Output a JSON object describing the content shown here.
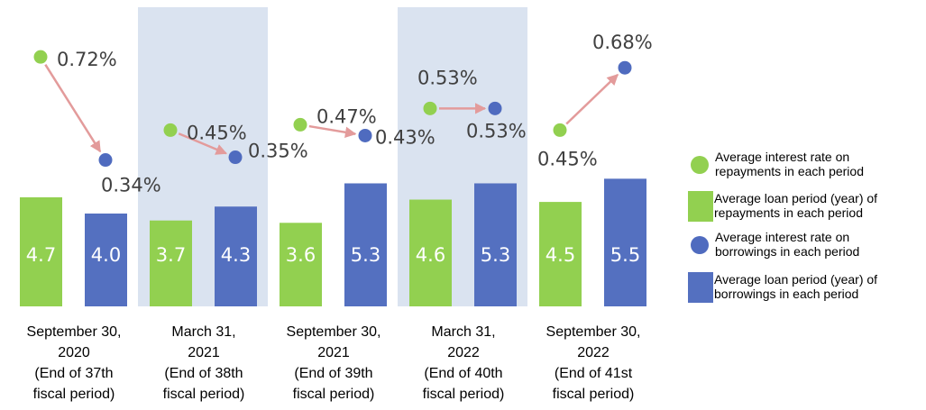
{
  "chart_data": {
    "type": "bar",
    "categories": [
      "September 30,\n2020\n(End of 37th\nfiscal period)",
      "March 31,\n2021\n(End of 38th\nfiscal period)",
      "September 30,\n2021\n(End of 39th\nfiscal period)",
      "March 31,\n2022\n(End of 40th\nfiscal period)",
      "September 30,\n2022\n(End of 41st\nfiscal period)"
    ],
    "series": [
      {
        "name": "Average interest rate on\nrepayments in each period",
        "type": "dot",
        "axis": "y2",
        "color": "#92d050",
        "values": [
          0.72,
          0.45,
          0.47,
          0.53,
          0.45
        ],
        "value_labels": [
          "0.72%",
          "0.45%",
          "0.47%",
          "0.53%",
          "0.45%"
        ]
      },
      {
        "name": "Average loan period (year) of\nrepayments in each period",
        "type": "bar",
        "color": "#92d050",
        "values": [
          4.7,
          3.7,
          3.6,
          4.6,
          4.5
        ]
      },
      {
        "name": "Average interest rate on\nborrowings in each period",
        "type": "dot",
        "axis": "y2",
        "color": "#4f6bbf",
        "values": [
          0.34,
          0.35,
          0.43,
          0.53,
          0.68
        ],
        "value_labels": [
          "0.34%",
          "0.35%",
          "0.43%",
          "0.53%",
          "0.68%"
        ]
      },
      {
        "name": "Average loan period (year) of\nborrowings in each period",
        "type": "bar",
        "color": "#5470c0",
        "values": [
          4.0,
          4.3,
          5.3,
          5.3,
          5.5
        ],
        "value_labels": [
          "4.0",
          "4.3",
          "5.3",
          "5.3",
          "5.5"
        ]
      }
    ],
    "ylim": [
      0,
      13.2
    ],
    "y2lim": [
      -0.2,
      0.93
    ]
  }
}
